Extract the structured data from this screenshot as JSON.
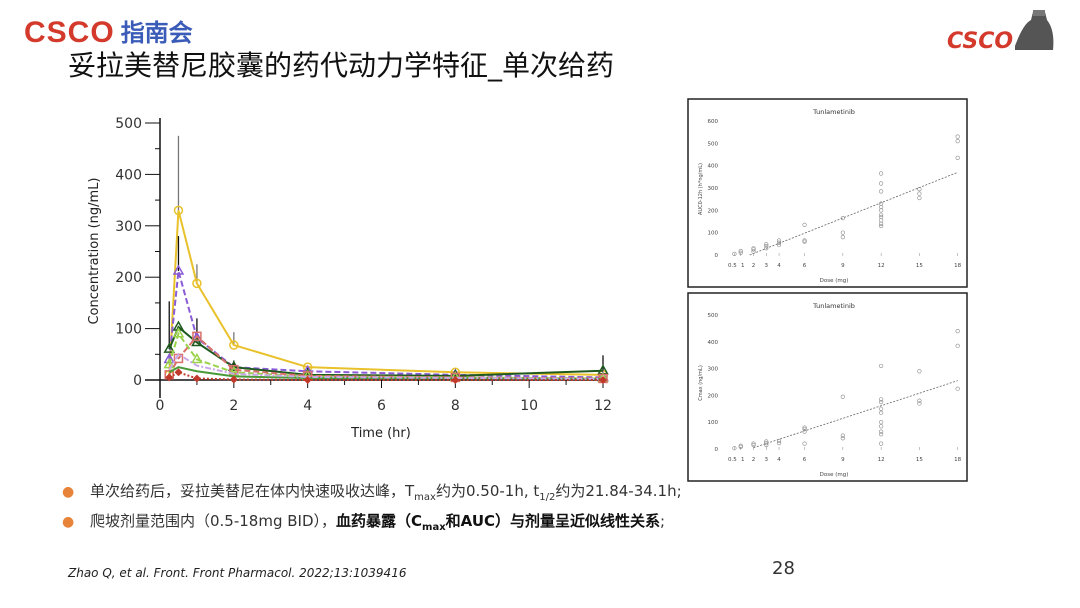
{
  "header": {
    "logo_left_text": "CSCO",
    "logo_left_zh": "指南会",
    "logo_right_text": "CSCO",
    "title": "妥拉美替尼胶囊的药代动力学特征_单次给药"
  },
  "chart_data": [
    {
      "type": "line",
      "xlabel": "Time (hr)",
      "ylabel": "Concentration (ng/mL)",
      "xlim": [
        0,
        12
      ],
      "ylim": [
        0,
        500
      ],
      "xticks": [
        0,
        2,
        4,
        6,
        8,
        10,
        12
      ],
      "yticks": [
        0,
        100,
        200,
        300,
        400,
        500
      ],
      "x": [
        0.25,
        0.5,
        1,
        2,
        4,
        8,
        12
      ],
      "series": [
        {
          "color": "#e9c12a",
          "style": "solid",
          "marker": "circle",
          "values": [
            10,
            330,
            188,
            68,
            25,
            15,
            10
          ],
          "err_upper": [
            null,
            475,
            225,
            93,
            null,
            null,
            null
          ]
        },
        {
          "color": "#8a5bd6",
          "style": "dashed",
          "marker": "triangle",
          "values": [
            40,
            212,
            82,
            25,
            17,
            10,
            5
          ],
          "err_upper": [
            null,
            280,
            120,
            null,
            null,
            null,
            null
          ]
        },
        {
          "color": "#1e5a1e",
          "style": "solid",
          "marker": "triangle",
          "values": [
            60,
            103,
            73,
            25,
            10,
            8,
            18
          ],
          "err_upper": [
            153,
            null,
            null,
            38,
            23,
            null,
            48
          ]
        },
        {
          "color": "#9ad24a",
          "style": "dashed",
          "marker": "triangle",
          "values": [
            30,
            90,
            40,
            15,
            7,
            5,
            3
          ],
          "err_upper": [
            null,
            null,
            null,
            null,
            null,
            null,
            null
          ]
        },
        {
          "color": "#d9706a",
          "style": "dashed",
          "marker": "square",
          "values": [
            10,
            42,
            85,
            20,
            8,
            5,
            3
          ],
          "err_upper": [
            null,
            null,
            null,
            null,
            null,
            null,
            null
          ]
        },
        {
          "color": "#4a9a3a",
          "style": "solid",
          "marker": "none",
          "values": [
            15,
            25,
            17,
            7,
            4,
            3,
            2
          ],
          "err_upper": [
            null,
            null,
            null,
            null,
            null,
            null,
            null
          ]
        },
        {
          "color": "#c8a8e8",
          "style": "dashdot",
          "marker": "none",
          "values": [
            20,
            50,
            28,
            12,
            6,
            4,
            2
          ],
          "err_upper": [
            null,
            null,
            null,
            null,
            null,
            null,
            null
          ]
        },
        {
          "color": "#c0392b",
          "style": "dotted",
          "marker": "diamond",
          "values": [
            5,
            15,
            3,
            1,
            0,
            0,
            0
          ],
          "err_upper": [
            null,
            null,
            null,
            null,
            null,
            null,
            null
          ]
        }
      ]
    },
    {
      "type": "scatter",
      "title": "Tunlametinib",
      "xlabel": "Dose (mg)",
      "ylabel": "AUC0-12h (h*ng/mL)",
      "ylim": [
        0,
        600
      ],
      "yticks": [
        0,
        100,
        200,
        300,
        400,
        500,
        600
      ],
      "xticks": [
        0.5,
        1,
        2,
        3,
        4,
        6,
        9,
        12,
        15,
        18
      ],
      "xtick_labels": [
        "0.5",
        "1",
        "2",
        "3",
        "4",
        "6",
        "9",
        "12",
        "15",
        "18"
      ],
      "points": [
        [
          0.5,
          5
        ],
        [
          1,
          10
        ],
        [
          1,
          18
        ],
        [
          2,
          15
        ],
        [
          2,
          25
        ],
        [
          2,
          30
        ],
        [
          3,
          30
        ],
        [
          3,
          40
        ],
        [
          3,
          48
        ],
        [
          4,
          45
        ],
        [
          4,
          55
        ],
        [
          4,
          65
        ],
        [
          6,
          60
        ],
        [
          6,
          65
        ],
        [
          6,
          135
        ],
        [
          9,
          80
        ],
        [
          9,
          100
        ],
        [
          9,
          165
        ],
        [
          12,
          130
        ],
        [
          12,
          140
        ],
        [
          12,
          155
        ],
        [
          12,
          170
        ],
        [
          12,
          180
        ],
        [
          12,
          200
        ],
        [
          12,
          215
        ],
        [
          12,
          230
        ],
        [
          12,
          285
        ],
        [
          12,
          320
        ],
        [
          12,
          365
        ],
        [
          15,
          255
        ],
        [
          15,
          275
        ],
        [
          15,
          295
        ],
        [
          18,
          435
        ],
        [
          18,
          510
        ],
        [
          18,
          530
        ]
      ],
      "trendline": [
        [
          1.7,
          0
        ],
        [
          18,
          370
        ]
      ]
    },
    {
      "type": "scatter",
      "title": "Tunlametinib",
      "xlabel": "Dose (mg)",
      "ylabel": "Cmax (ng/mL)",
      "ylim": [
        0,
        500
      ],
      "yticks": [
        0,
        100,
        200,
        300,
        400,
        500
      ],
      "xticks": [
        0.5,
        1,
        2,
        3,
        4,
        6,
        9,
        12,
        15,
        18
      ],
      "xtick_labels": [
        "0.5",
        "1",
        "2",
        "3",
        "4",
        "6",
        "9",
        "12",
        "15",
        "18"
      ],
      "points": [
        [
          0.5,
          3
        ],
        [
          1,
          8
        ],
        [
          1,
          12
        ],
        [
          2,
          15
        ],
        [
          2,
          20
        ],
        [
          3,
          15
        ],
        [
          3,
          22
        ],
        [
          3,
          28
        ],
        [
          4,
          22
        ],
        [
          4,
          30
        ],
        [
          6,
          20
        ],
        [
          6,
          65
        ],
        [
          6,
          75
        ],
        [
          6,
          80
        ],
        [
          9,
          40
        ],
        [
          9,
          50
        ],
        [
          9,
          195
        ],
        [
          12,
          20
        ],
        [
          12,
          55
        ],
        [
          12,
          65
        ],
        [
          12,
          85
        ],
        [
          12,
          100
        ],
        [
          12,
          135
        ],
        [
          12,
          150
        ],
        [
          12,
          175
        ],
        [
          12,
          185
        ],
        [
          12,
          310
        ],
        [
          15,
          170
        ],
        [
          15,
          180
        ],
        [
          15,
          290
        ],
        [
          18,
          225
        ],
        [
          18,
          385
        ],
        [
          18,
          440
        ]
      ],
      "trendline": [
        [
          2,
          5
        ],
        [
          18,
          255
        ]
      ]
    }
  ],
  "bullets": [
    {
      "parts": [
        "单次给药后，妥拉美替尼在体内快速吸收达峰，T",
        "max",
        "约为0.50-1h, t",
        "1/2",
        "约为21.84-34.1h;"
      ]
    },
    {
      "parts": [
        "爬坡剂量范围内（0.5-18mg BID），",
        "血药暴露（C",
        "max",
        "和AUC）与剂量呈近似线性关系",
        ";"
      ]
    }
  ],
  "footer": {
    "reference": "Zhao Q, et al. Front. Front Pharmacol. 2022;13:1039416",
    "page_number": "28"
  }
}
